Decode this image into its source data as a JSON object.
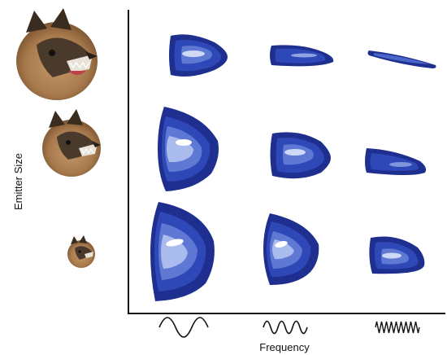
{
  "axes": {
    "x_label": "Frequency",
    "y_label": "Emitter Size"
  },
  "layout_grid": {
    "rows": [
      "large",
      "medium",
      "small"
    ],
    "columns": [
      "low",
      "mid",
      "high"
    ]
  },
  "icons": {
    "bat_heads": [
      "bat-head-large-icon",
      "bat-head-medium-icon",
      "bat-head-small-icon"
    ],
    "waves": [
      "wave-low-frequency-icon",
      "wave-mid-frequency-icon",
      "wave-high-frequency-icon"
    ]
  },
  "colors": {
    "beam_dark": "#1e2f8f",
    "beam_mid": "#2f48b8",
    "beam_light": "#5e78d4",
    "beam_highlight": "#cfd8f5",
    "axis": "#111111"
  }
}
